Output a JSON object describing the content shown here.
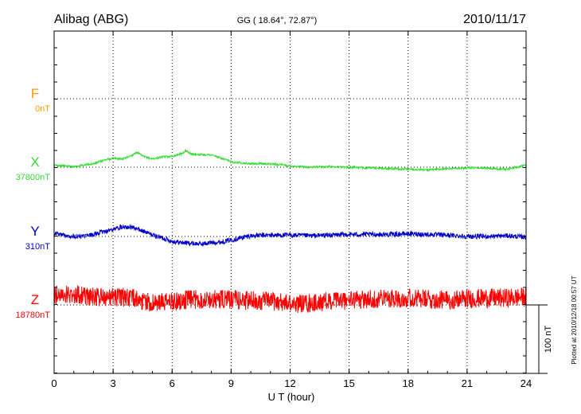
{
  "chart_data": {
    "type": "line",
    "station": "Alibag (ABG)",
    "coords_label": "GG ( 18.64°,  72.87°)",
    "date": "2010/11/17",
    "xlabel": "U T (hour)",
    "xlim": [
      0,
      24
    ],
    "x_ticks": [
      "0",
      "3",
      "6",
      "9",
      "12",
      "15",
      "18",
      "21",
      "24"
    ],
    "grid": true,
    "scale_bar_label": "100 nT",
    "plotted_note": "Plotted at 2010/12/18 00:57 UT",
    "series": [
      {
        "name": "F",
        "baseline": "0nT",
        "color": "#ff9900",
        "x": [],
        "values": []
      },
      {
        "name": "X",
        "baseline": "37800nT",
        "color": "#33dd33",
        "x": [
          0,
          1,
          2,
          2.5,
          3,
          3.5,
          4,
          4.2,
          4.5,
          5,
          5.5,
          6,
          6.5,
          6.7,
          7,
          8,
          9,
          10,
          11,
          12,
          13,
          14,
          15,
          16,
          17,
          18,
          19,
          20,
          21,
          22,
          23,
          24
        ],
        "values": [
          3,
          1,
          5,
          10,
          13,
          12,
          18,
          22,
          16,
          12,
          15,
          16,
          20,
          24,
          19,
          18,
          8,
          5,
          5,
          2,
          0,
          1,
          0,
          -1,
          -2,
          -3,
          -4,
          -2,
          -1,
          -1,
          -3,
          3
        ]
      },
      {
        "name": "Y",
        "baseline": "310nT",
        "color": "#0000cc",
        "x": [
          0,
          0.5,
          1,
          1.5,
          2,
          2.5,
          3,
          3.5,
          4,
          4.5,
          5,
          5.5,
          6,
          6.5,
          7,
          7.5,
          8,
          8.5,
          9,
          9.5,
          10,
          11,
          12,
          13,
          14,
          15,
          16,
          17,
          18,
          19,
          20,
          21,
          22,
          23,
          24
        ],
        "values": [
          5,
          2,
          0,
          0,
          3,
          7,
          10,
          15,
          13,
          8,
          2,
          -2,
          -7,
          -9,
          -10,
          -11,
          -9,
          -8,
          -5,
          -2,
          1,
          2,
          2,
          1,
          2,
          3,
          3,
          3,
          4,
          3,
          2,
          0,
          0,
          1,
          -1
        ]
      },
      {
        "name": "Z",
        "baseline": "18780nT",
        "color": "#ff0000",
        "x": [
          0,
          1,
          2,
          3,
          4,
          5,
          6,
          7,
          8,
          9,
          10,
          11,
          12,
          13,
          14,
          15,
          16,
          17,
          18,
          19,
          20,
          21,
          22,
          23,
          24
        ],
        "values": [
          15,
          15,
          12,
          12,
          10,
          2,
          5,
          8,
          8,
          8,
          6,
          6,
          2,
          2,
          5,
          7,
          8,
          10,
          10,
          8,
          7,
          9,
          10,
          10,
          12
        ]
      }
    ]
  }
}
